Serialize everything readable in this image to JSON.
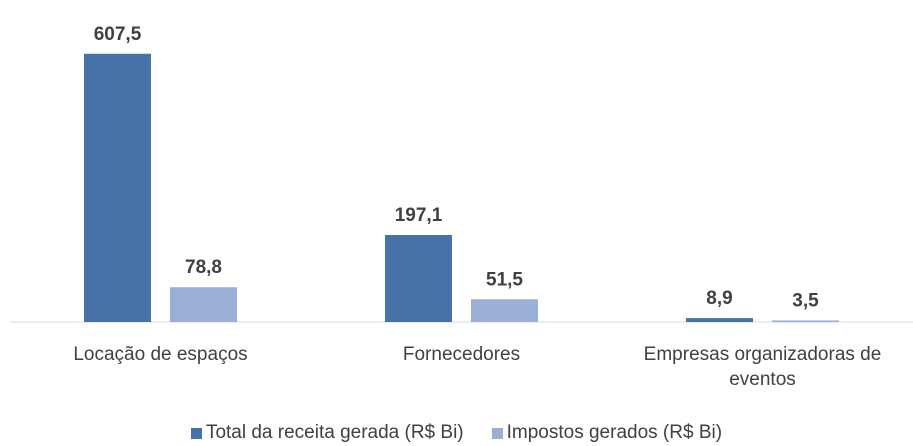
{
  "chart_data": {
    "type": "bar",
    "categories": [
      "Locação de espaços",
      "Fornecedores",
      "Empresas organizadoras de eventos"
    ],
    "series": [
      {
        "name": "Total da receita gerada (R$ Bi)",
        "color": "#4672a8",
        "values": [
          607.5,
          197.1,
          8.9
        ],
        "value_labels": [
          "607,5",
          "197,1",
          "8,9"
        ]
      },
      {
        "name": "Impostos gerados (R$ Bi)",
        "color": "#9aafd6",
        "values": [
          78.8,
          51.5,
          3.5
        ],
        "value_labels": [
          "78,8",
          "51,5",
          "3,5"
        ]
      }
    ],
    "ylim": [
      0,
      650
    ]
  }
}
